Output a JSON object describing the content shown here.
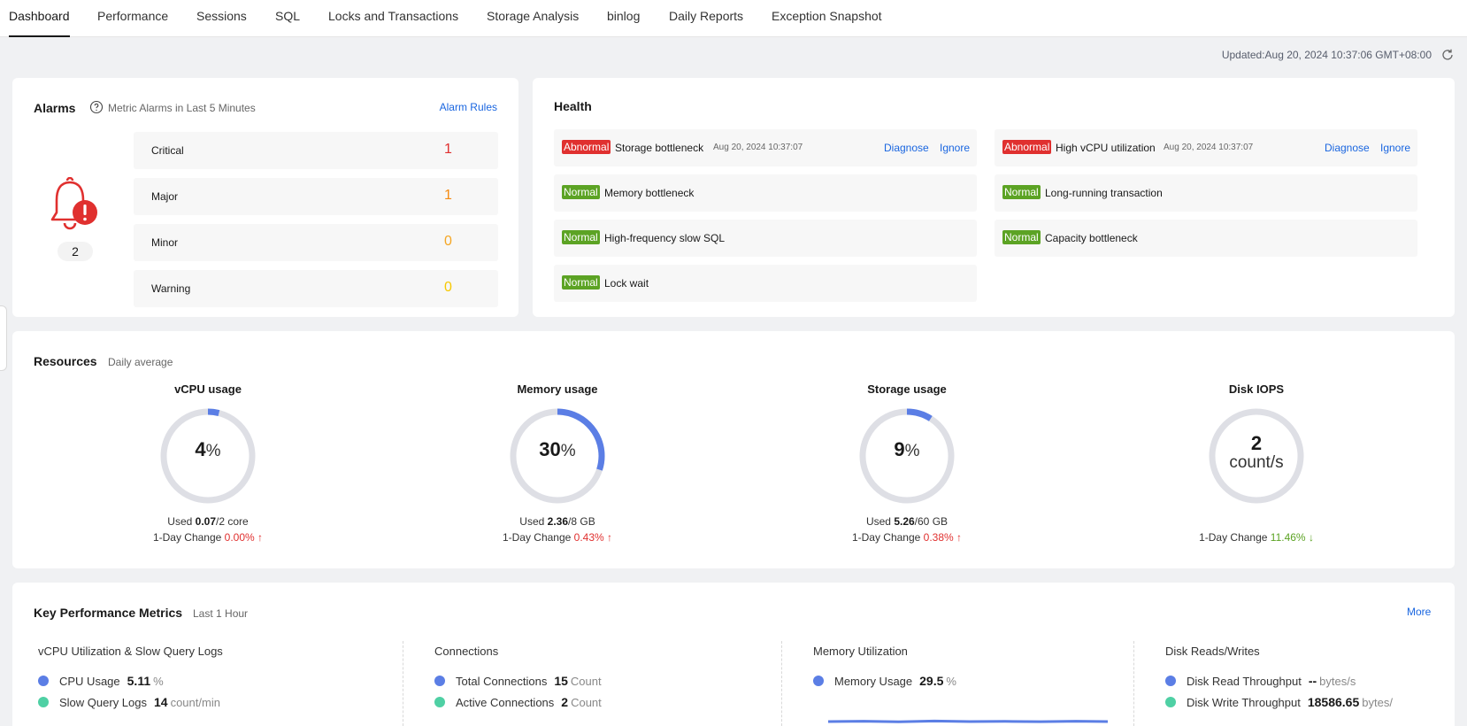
{
  "tabs": [
    "Dashboard",
    "Performance",
    "Sessions",
    "SQL",
    "Locks and Transactions",
    "Storage Analysis",
    "binlog",
    "Daily Reports",
    "Exception Snapshot"
  ],
  "updated": "Updated:Aug 20, 2024 10:37:06 GMT+08:00",
  "alarms": {
    "title": "Alarms",
    "subtitle": "Metric Alarms in Last 5 Minutes",
    "rules_link": "Alarm Rules",
    "total": "2",
    "rows": [
      {
        "label": "Critical",
        "value": "1",
        "color": "#e0302f"
      },
      {
        "label": "Major",
        "value": "1",
        "color": "#f48b12"
      },
      {
        "label": "Minor",
        "value": "0",
        "color": "#f5a623"
      },
      {
        "label": "Warning",
        "value": "0",
        "color": "#f7c800"
      }
    ]
  },
  "health": {
    "title": "Health",
    "diagnose": "Diagnose",
    "ignore": "Ignore",
    "items": [
      {
        "status": "Abnormal",
        "label": "Storage bottleneck",
        "time": "Aug 20, 2024 10:37:07"
      },
      {
        "status": "Abnormal",
        "label": "High vCPU utilization",
        "time": "Aug 20, 2024 10:37:07"
      },
      {
        "status": "Normal",
        "label": "Memory bottleneck"
      },
      {
        "status": "Normal",
        "label": "Long-running transaction"
      },
      {
        "status": "Normal",
        "label": "High-frequency slow SQL"
      },
      {
        "status": "Normal",
        "label": "Capacity bottleneck"
      },
      {
        "status": "Normal",
        "label": "Lock wait"
      }
    ]
  },
  "resources": {
    "title": "Resources",
    "subtitle": "Daily average",
    "used_prefix": "Used ",
    "change_label": "1-Day Change ",
    "items": [
      {
        "title": "vCPU usage",
        "value": "4",
        "unit": "%",
        "percent": 4,
        "used": "0.07",
        "total": "/2 core",
        "change": "0.00%",
        "trend": "up"
      },
      {
        "title": "Memory usage",
        "value": "30",
        "unit": "%",
        "percent": 30,
        "used": "2.36",
        "total": "/8 GB",
        "change": "0.43%",
        "trend": "up"
      },
      {
        "title": "Storage usage",
        "value": "9",
        "unit": "%",
        "percent": 9,
        "used": "5.26",
        "total": "/60 GB",
        "change": "0.38%",
        "trend": "up"
      },
      {
        "title": "Disk IOPS",
        "value": "2",
        "unit": "count/s",
        "percent": 0,
        "change": "11.46%",
        "trend": "down"
      }
    ]
  },
  "metrics": {
    "title": "Key Performance Metrics",
    "subtitle": "Last 1 Hour",
    "more": "More",
    "groups": [
      {
        "title": "vCPU Utilization & Slow Query Logs",
        "rows": [
          {
            "label": "CPU Usage",
            "value": "5.11",
            "unit": "%",
            "color": "#5b7ee5"
          },
          {
            "label": "Slow Query Logs",
            "value": "14",
            "unit": "count/min",
            "color": "#4fd0a4"
          }
        ]
      },
      {
        "title": "Connections",
        "rows": [
          {
            "label": "Total Connections",
            "value": "15",
            "unit": "Count",
            "color": "#5b7ee5"
          },
          {
            "label": "Active Connections",
            "value": "2",
            "unit": "Count",
            "color": "#4fd0a4"
          }
        ]
      },
      {
        "title": "Memory Utilization",
        "rows": [
          {
            "label": "Memory Usage",
            "value": "29.5",
            "unit": "%",
            "color": "#5b7ee5"
          }
        ]
      },
      {
        "title": "Disk Reads/Writes",
        "rows": [
          {
            "label": "Disk Read Throughput",
            "value": "--",
            "unit": "bytes/s",
            "color": "#5b7ee5"
          },
          {
            "label": "Disk Write Throughput",
            "value": "18586.65",
            "unit": "bytes/",
            "color": "#4fd0a4"
          }
        ]
      }
    ]
  },
  "colors": {
    "gauge_track": "#dedfe5",
    "gauge_fill": "#5b7ee5",
    "link": "#1a66e0",
    "abnormal": "#e0302f",
    "normal": "#5ca324"
  }
}
